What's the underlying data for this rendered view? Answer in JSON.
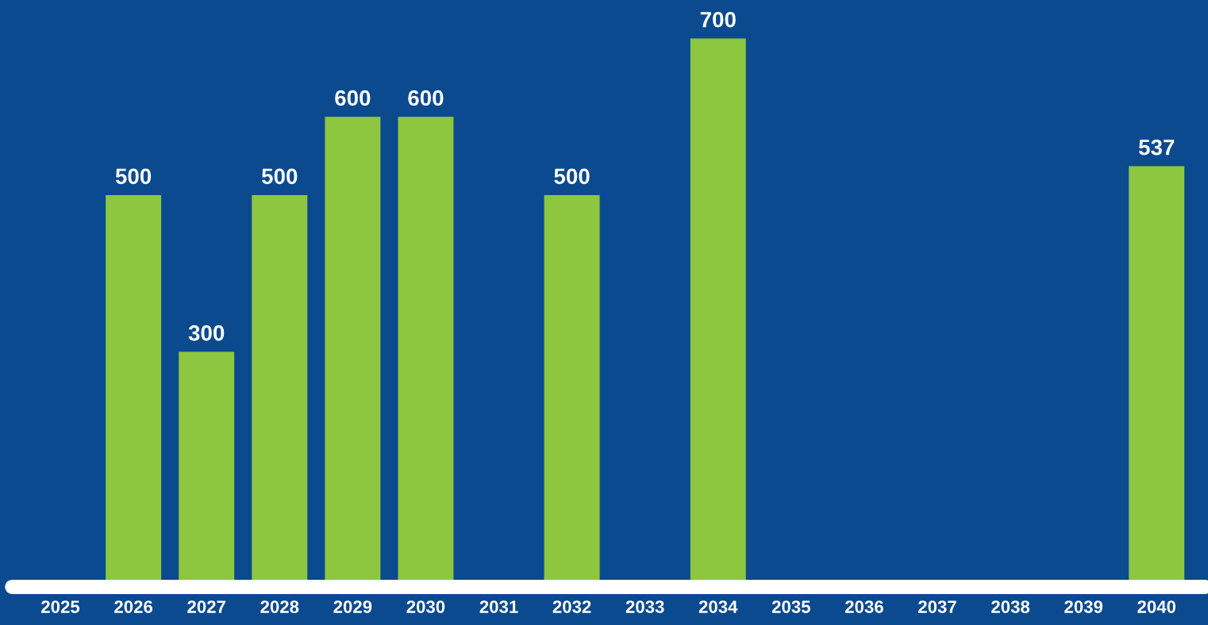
{
  "chart_data": {
    "type": "bar",
    "categories": [
      "2025",
      "2026",
      "2027",
      "2028",
      "2029",
      "2030",
      "2031",
      "2032",
      "2033",
      "2034",
      "2035",
      "2036",
      "2037",
      "2038",
      "2039",
      "2040"
    ],
    "values": [
      null,
      500,
      300,
      500,
      600,
      600,
      null,
      500,
      null,
      700,
      null,
      null,
      null,
      null,
      null,
      537
    ],
    "color": "#8dc63f",
    "data_labels": true,
    "grid": false,
    "legend": false
  }
}
